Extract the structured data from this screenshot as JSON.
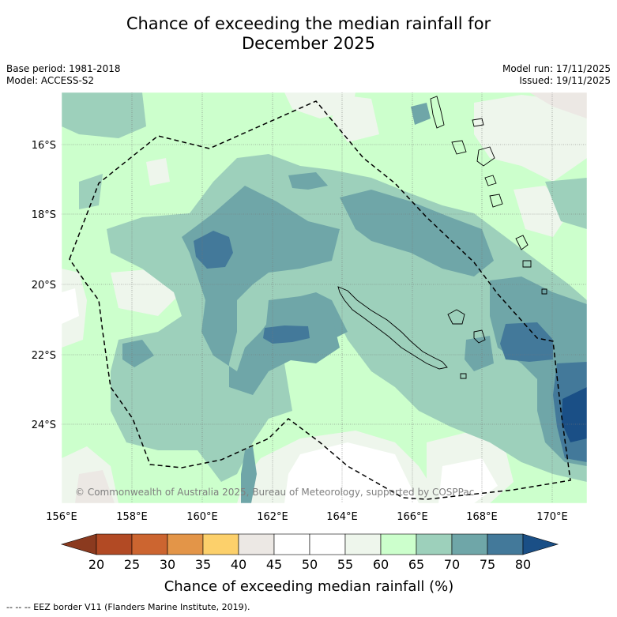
{
  "title": {
    "line1": "Chance of exceeding the median rainfall for",
    "line2": "December 2025"
  },
  "meta": {
    "base_period": "Base period: 1981-2018",
    "model": "Model: ACCESS-S2",
    "model_run": "Model run: 17/11/2025",
    "issued": "Issued: 19/11/2025"
  },
  "map": {
    "lat_labels": [
      "16°S",
      "18°S",
      "20°S",
      "22°S",
      "24°S"
    ],
    "lon_labels": [
      "156°E",
      "158°E",
      "160°E",
      "162°E",
      "164°E",
      "166°E",
      "168°E",
      "170°E"
    ],
    "copyright": "© Commonwealth of Australia 2025, Bureau of Meteorology, supported by COSPPac"
  },
  "legend": {
    "ticks": [
      "20",
      "25",
      "30",
      "35",
      "40",
      "45",
      "50",
      "55",
      "60",
      "65",
      "70",
      "75",
      "80"
    ],
    "colors": [
      "#8b3a1f",
      "#b24a24",
      "#cc6530",
      "#e39548",
      "#fcd06b",
      "#ece8e4",
      "#ffffff",
      "#ffffff",
      "#eef6ec",
      "#ccffcc",
      "#9dd0bb",
      "#6fa6a8",
      "#43799a",
      "#1a4f86"
    ],
    "label": "Chance of exceeding median rainfall (%)"
  },
  "footer": "--  --  -- EEZ border V11 (Flanders Marine Institute, 2019)."
}
